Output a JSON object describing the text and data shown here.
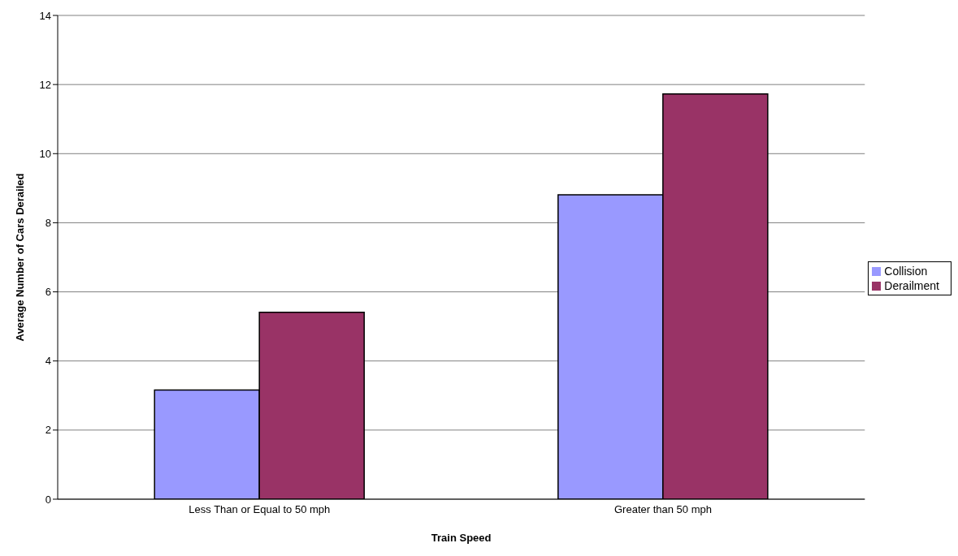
{
  "chart_data": {
    "type": "bar",
    "xlabel": "Train Speed",
    "ylabel": "Average Number of Cars Derailed",
    "categories": [
      "Less Than or Equal to 50 mph",
      "Greater than 50 mph"
    ],
    "series": [
      {
        "name": "Collision",
        "color": "#9999ff",
        "values": [
          3.16,
          8.81
        ]
      },
      {
        "name": "Derailment",
        "color": "#993366",
        "values": [
          5.41,
          11.73
        ]
      }
    ],
    "ylim": [
      0,
      14
    ],
    "yticks": [
      0,
      2,
      4,
      6,
      8,
      10,
      12,
      14
    ],
    "grid": "y",
    "legend": "right"
  }
}
